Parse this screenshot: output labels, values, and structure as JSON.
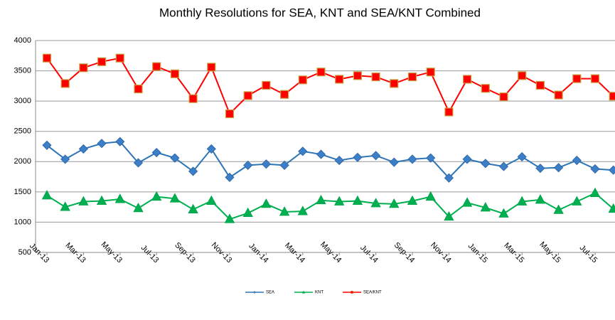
{
  "chart_data": {
    "type": "line",
    "title": "Monthly Resolutions for SEA, KNT and SEA/KNT Combined",
    "categories": [
      "Jan-13",
      null,
      "Mar-13",
      null,
      "May-13",
      null,
      "Jul-13",
      null,
      "Sep-13",
      null,
      "Nov-13",
      null,
      "Jan-14",
      null,
      "Mar-14",
      null,
      "May-14",
      null,
      "Jul-14",
      null,
      "Sep-14",
      null,
      "Nov-14",
      null,
      "Jan-15",
      null,
      "Mar-15",
      null,
      "May-15",
      null,
      "Jul-15",
      null
    ],
    "series": [
      {
        "name": "SEA",
        "color": "#2e75b6",
        "values": [
          2270,
          2040,
          2210,
          2300,
          2330,
          1980,
          2150,
          2060,
          1840,
          2210,
          1740,
          1940,
          1960,
          1940,
          2170,
          2120,
          2020,
          2070,
          2100,
          1990,
          2040,
          2060,
          1730,
          2040,
          1970,
          1920,
          2080,
          1890,
          1900,
          2020,
          1880,
          1860
        ]
      },
      {
        "name": "KNT",
        "color": "#00b050",
        "values": [
          1440,
          1250,
          1340,
          1350,
          1380,
          1230,
          1420,
          1390,
          1210,
          1350,
          1050,
          1150,
          1300,
          1170,
          1180,
          1360,
          1340,
          1350,
          1310,
          1300,
          1350,
          1420,
          1090,
          1320,
          1240,
          1140,
          1340,
          1370,
          1200,
          1340,
          1480,
          1220
        ]
      },
      {
        "name": "SEA/KNT",
        "color": "#ff0000",
        "values": [
          3710,
          3290,
          3550,
          3650,
          3710,
          3200,
          3570,
          3450,
          3040,
          3560,
          2790,
          3090,
          3260,
          3110,
          3350,
          3480,
          3360,
          3420,
          3400,
          3290,
          3400,
          3480,
          2820,
          3360,
          3210,
          3070,
          3420,
          3260,
          3100,
          3370,
          3370,
          3080
        ]
      }
    ],
    "ylim": [
      500,
      4000
    ],
    "yticks": [
      500,
      1000,
      1500,
      2000,
      2500,
      3000,
      3500,
      4000
    ],
    "grid": true
  }
}
